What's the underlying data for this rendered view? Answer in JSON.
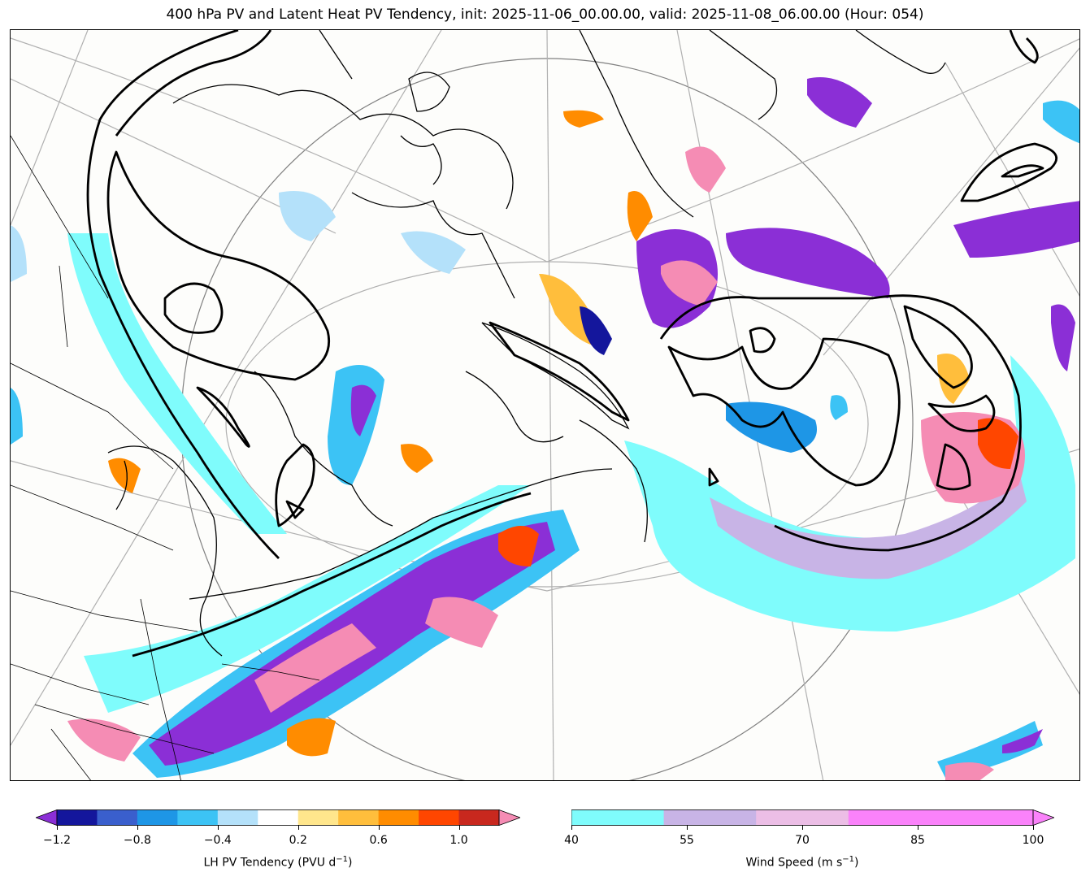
{
  "title": "400 hPa PV and Latent Heat PV Tendency, init: 2025-11-06_00.00.00, valid: 2025-11-08_06.00.00 (Hour: 054)",
  "colorbars": {
    "left": {
      "label_prefix": "LH PV Tendency (PVU d",
      "label_exp": "−1",
      "label_suffix": ")",
      "ticks": [
        "−1.2",
        "−0.8",
        "−0.4",
        "0.2",
        "0.6",
        "1.0"
      ],
      "colors": [
        "#8b2fd6",
        "#14169c",
        "#3a5fcd",
        "#1e96e6",
        "#3cc3f5",
        "#b4e1fa",
        "#ffffff",
        "#ffe68c",
        "#ffbe3c",
        "#ff8c00",
        "#ff4600",
        "#c8281e",
        "#f58cb4"
      ]
    },
    "right": {
      "label_prefix": "Wind Speed (m s",
      "label_exp": "−1",
      "label_suffix": ")",
      "ticks": [
        "40",
        "55",
        "70",
        "85",
        "100"
      ],
      "colors": [
        "#7ffcfc",
        "#c8b4e6",
        "#ecbee6",
        "#fa82fa"
      ]
    }
  }
}
